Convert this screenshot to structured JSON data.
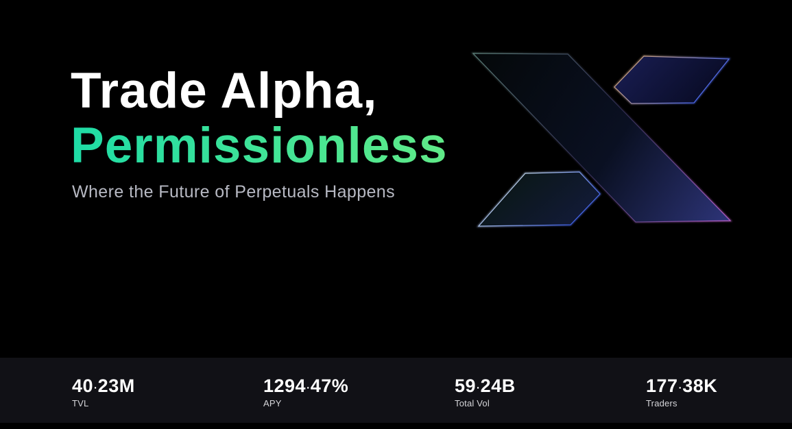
{
  "hero": {
    "title_line1": "Trade Alpha,",
    "title_line2": "Permissionless",
    "subtitle": "Where the Future of Perpetuals Happens"
  },
  "colors": {
    "background": "#000000",
    "title": "#ffffff",
    "accent_gradient_start": "#1edca6",
    "accent_gradient_end": "#60ea88",
    "subtitle": "#b7b9c3",
    "stats_band_background": "#111116",
    "logo_edge_blue": "#4a6af0",
    "logo_edge_purple": "#b95fcd",
    "logo_edge_peach": "#d8b090"
  },
  "logo": {
    "name": "x-mark-logo"
  },
  "stats": {
    "items": [
      {
        "value": "40.23M",
        "label": "TVL"
      },
      {
        "value": "1294.47%",
        "label": "APY"
      },
      {
        "value": "59.24B",
        "label": "Total Vol"
      },
      {
        "value": "177.38K",
        "label": "Traders"
      }
    ]
  }
}
